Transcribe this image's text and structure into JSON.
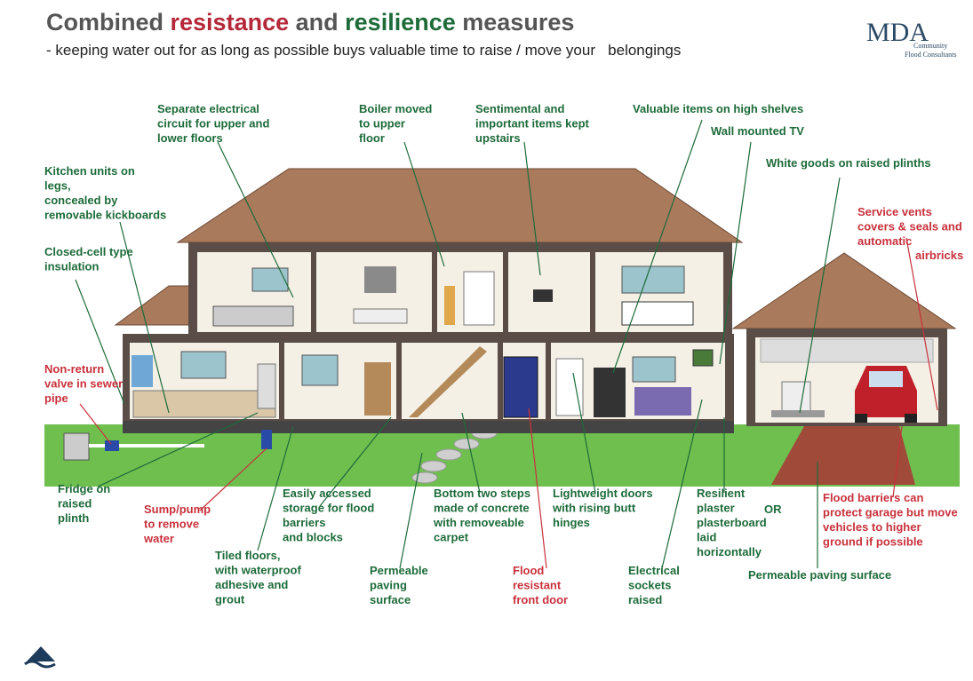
{
  "title": [
    "Combined",
    "resistance",
    "and",
    "resilience",
    "measures"
  ],
  "subtitle": "- keeping water out for as long as possible buys valuable time to raise / move your   belongings",
  "logo": {
    "mark": "MDA",
    "lines": [
      "Community",
      "Flood Consultants"
    ]
  },
  "labels": [
    {
      "lines": [
        "Separate electrical",
        "circuit for upper and",
        "lower floors"
      ],
      "color": "#1e6b3a"
    },
    {
      "lines": [
        "Boiler moved",
        "to upper",
        "floor"
      ],
      "color": "#1e6b3a"
    },
    {
      "lines": [
        "Sentimental and",
        "important items kept",
        "upstairs"
      ],
      "color": "#1e6b3a"
    },
    {
      "lines": [
        "Valuable items on high shelves"
      ],
      "color": "#1e6b3a"
    },
    {
      "lines": [
        "Wall mounted TV"
      ],
      "color": "#1e6b3a"
    },
    {
      "lines": [
        "White goods on raised plinths"
      ],
      "color": "#1e6b3a"
    },
    {
      "lines": [
        "Kitchen units on",
        "legs,",
        "concealed by",
        "removable kickboards"
      ],
      "color": "#1e6b3a"
    },
    {
      "lines": [
        "Closed-cell type",
        "insulation"
      ],
      "color": "#1e6b3a"
    },
    {
      "lines": [
        "Service vents",
        "covers & seals and",
        "automatic"
      ],
      "color": "#c8313c"
    },
    {
      "lines": [
        "airbricks"
      ],
      "color": "#c8313c"
    },
    {
      "lines": [
        "Non-return",
        "valve in sewer",
        "pipe"
      ],
      "color": "#c8313c"
    },
    {
      "lines": [
        "Fridge on",
        "raised",
        "plinth"
      ],
      "color": "#1e6b3a"
    },
    {
      "lines": [
        "Sump/pump",
        "to remove",
        "water"
      ],
      "color": "#c8313c"
    },
    {
      "lines": [
        "Tiled floors,",
        "with waterproof",
        "adhesive and",
        "grout"
      ],
      "color": "#1e6b3a"
    },
    {
      "lines": [
        "Easily accessed",
        "storage for flood",
        "barriers",
        "and blocks"
      ],
      "color": "#1e6b3a"
    },
    {
      "lines": [
        "Permeable",
        "paving",
        "surface"
      ],
      "color": "#1e6b3a"
    },
    {
      "lines": [
        "Bottom two steps",
        "made of concrete",
        "with removeable",
        "carpet"
      ],
      "color": "#1e6b3a"
    },
    {
      "lines": [
        "Flood",
        "resistant",
        "front door"
      ],
      "color": "#c8313c"
    },
    {
      "lines": [
        "Lightweight doors",
        "with rising butt",
        "hinges"
      ],
      "color": "#1e6b3a"
    },
    {
      "lines": [
        "Electrical",
        "sockets",
        "raised"
      ],
      "color": "#1e6b3a"
    },
    {
      "lines": [
        "Resilient",
        "plaster",
        "plasterboard",
        "laid",
        "horizontally"
      ],
      "color": "#1e6b3a"
    },
    {
      "lines": [
        "OR"
      ],
      "color": "#1e6b3a"
    },
    {
      "lines": [
        "Permeable paving surface"
      ],
      "color": "#1e6b3a"
    },
    {
      "lines": [
        "Flood barriers can",
        "protect garage but move",
        "vehicles to higher",
        "ground if possible"
      ],
      "color": "#c8313c"
    }
  ]
}
